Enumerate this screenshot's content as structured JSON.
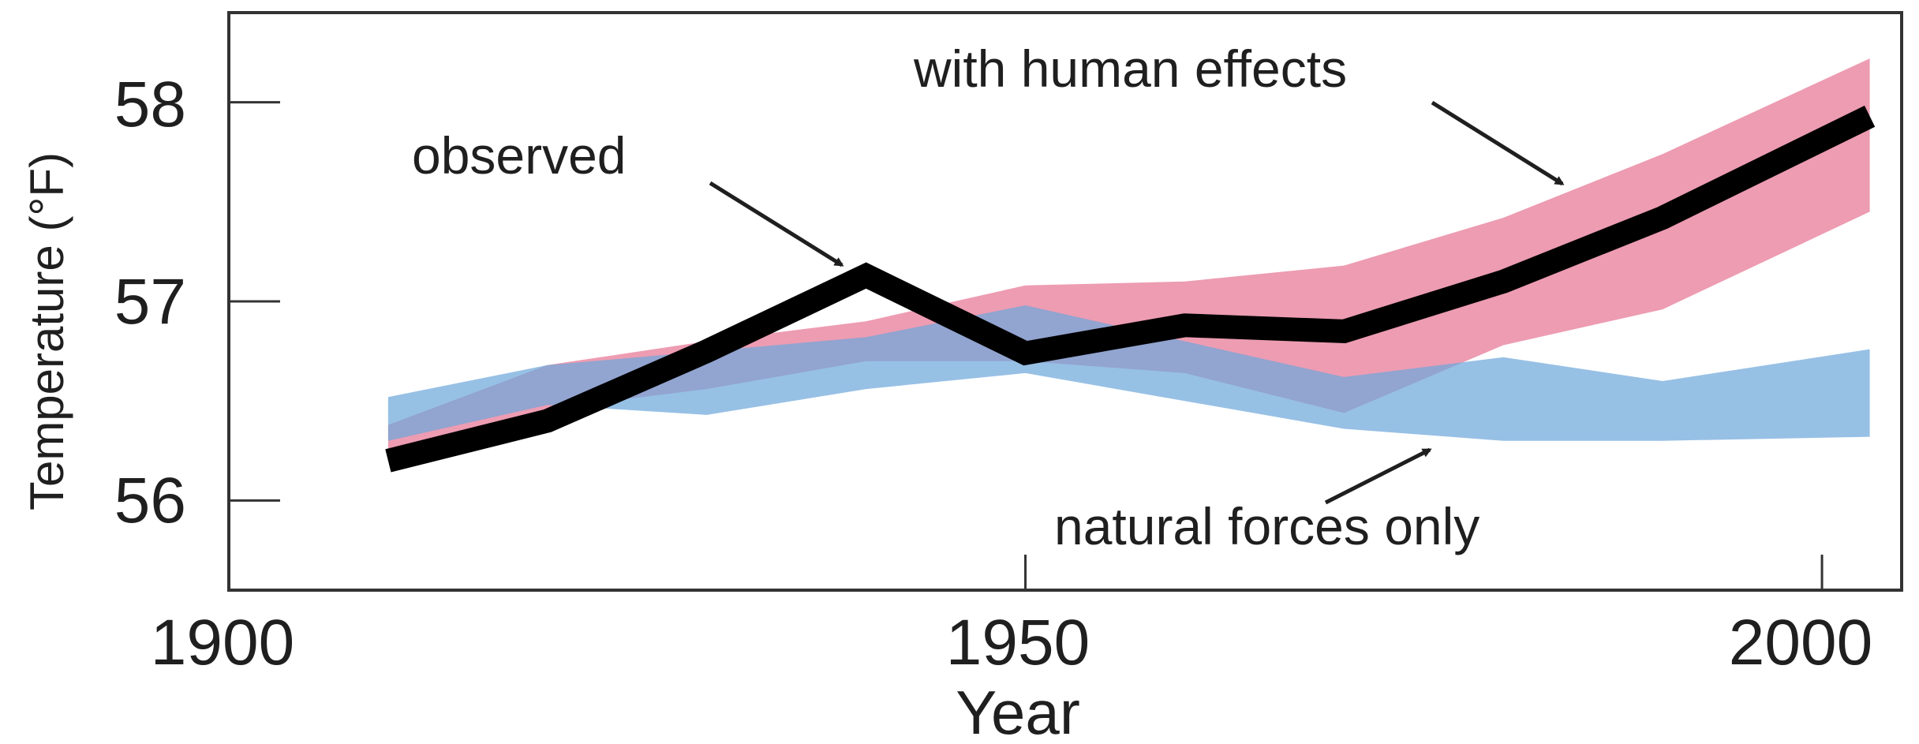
{
  "chart_data": {
    "type": "line",
    "title": "",
    "xlabel": "Year",
    "ylabel": "Temperature (°F)",
    "xlim": [
      1900,
      2005
    ],
    "ylim": [
      55.55,
      58.45
    ],
    "x_ticks": [
      1900,
      1950,
      2000
    ],
    "y_ticks": [
      56,
      57,
      58
    ],
    "x_tick_labels": [
      "1900",
      "1950",
      "2000"
    ],
    "y_tick_labels": [
      "56",
      "57",
      "58"
    ],
    "grid": false,
    "legend": "none",
    "colors": {
      "observed": "#000000",
      "human_band": "#ec97ae",
      "natural_band": "#6fa8db",
      "overlap": "#a57ba8",
      "axes": "#333333"
    },
    "series": [
      {
        "name": "observed",
        "x": [
          1910,
          1920,
          1930,
          1940,
          1950,
          1960,
          1970,
          1980,
          1990,
          2003
        ],
        "values": [
          56.2,
          56.4,
          56.75,
          57.13,
          56.74,
          56.88,
          56.85,
          57.1,
          57.42,
          57.93
        ]
      }
    ],
    "bands": [
      {
        "name": "with human effects",
        "x": [
          1910,
          1920,
          1930,
          1940,
          1950,
          1960,
          1970,
          1980,
          1990,
          2003
        ],
        "upper": [
          56.38,
          56.68,
          56.8,
          56.9,
          57.08,
          57.1,
          57.18,
          57.42,
          57.74,
          58.22
        ],
        "lower": [
          56.25,
          56.46,
          56.56,
          56.7,
          56.7,
          56.64,
          56.44,
          56.78,
          56.96,
          57.45
        ]
      },
      {
        "name": "natural forces only",
        "x": [
          1910,
          1920,
          1930,
          1940,
          1950,
          1960,
          1970,
          1980,
          1990,
          2003
        ],
        "upper": [
          56.52,
          56.68,
          56.75,
          56.82,
          56.98,
          56.8,
          56.62,
          56.72,
          56.6,
          56.76
        ],
        "lower": [
          56.3,
          56.48,
          56.43,
          56.56,
          56.64,
          56.5,
          56.36,
          56.3,
          56.3,
          56.32
        ]
      }
    ],
    "annotations": [
      {
        "text": "observed",
        "points_to": [
          1940,
          57.12
        ]
      },
      {
        "text": "with human effects",
        "points_to": [
          1996,
          57.6
        ]
      },
      {
        "text": "natural forces only",
        "points_to": [
          1974,
          56.28
        ]
      }
    ]
  }
}
